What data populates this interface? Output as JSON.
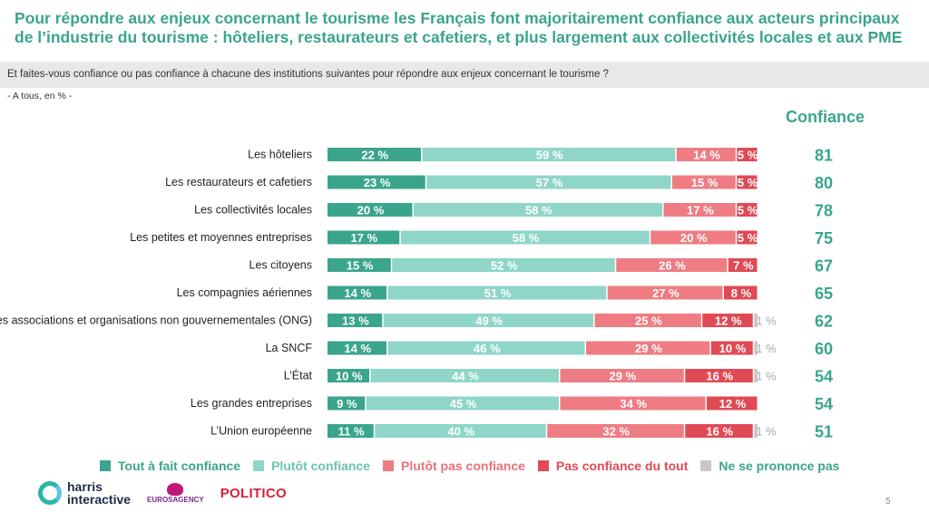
{
  "title": "Pour répondre aux enjeux concernant le tourisme les Français font majoritairement confiance aux acteurs principaux de l’industrie du tourisme : hôteliers, restaurateurs et cafetiers, et plus largement aux collectivités locales et aux PME",
  "question": "Et faites-vous confiance ou pas confiance à chacune des institutions suivantes pour répondre aux enjeux concernant le tourisme ?",
  "base": "- A tous, en % -",
  "confidence_header": "Confiance",
  "page_number": "5",
  "logos": {
    "harris_line1": "harris",
    "harris_line2": "interactive",
    "euros": "EUROSAGENCY",
    "politico": "POLITICO"
  },
  "colors": {
    "tout_a_fait": "#3aa58c",
    "plutot": "#8fd6c8",
    "plutot_pas": "#ee7c82",
    "pas_du_tout": "#e04a55",
    "nspp": "#c8c8c8",
    "confidence": "#3aa58c"
  },
  "chart_data": {
    "type": "bar",
    "orientation": "horizontal",
    "stacked": true,
    "unit": "%",
    "categories": [
      "Les hôteliers",
      "Les restaurateurs et cafetiers",
      "Les collectivités locales",
      "Les petites et moyennes entreprises",
      "Les citoyens",
      "Les compagnies aériennes",
      "Les associations et organisations non gouvernementales (ONG)",
      "La SNCF",
      "L’État",
      "Les grandes entreprises",
      "L’Union européenne"
    ],
    "series": [
      {
        "name": "Tout à fait confiance",
        "values": [
          22,
          23,
          20,
          17,
          15,
          14,
          13,
          14,
          10,
          9,
          11
        ]
      },
      {
        "name": "Plutôt confiance",
        "values": [
          59,
          57,
          58,
          58,
          52,
          51,
          49,
          46,
          44,
          45,
          40
        ]
      },
      {
        "name": "Plutôt pas confiance",
        "values": [
          14,
          15,
          17,
          20,
          26,
          27,
          25,
          29,
          29,
          34,
          32
        ]
      },
      {
        "name": "Pas confiance du tout",
        "values": [
          5,
          5,
          5,
          5,
          7,
          8,
          12,
          10,
          16,
          12,
          16
        ]
      },
      {
        "name": "Ne se prononce pas",
        "values": [
          0,
          0,
          0,
          0,
          0,
          0,
          1,
          1,
          1,
          0,
          1
        ]
      }
    ],
    "confiance": [
      81,
      80,
      78,
      75,
      67,
      65,
      62,
      60,
      54,
      54,
      51
    ],
    "xlim": [
      0,
      100
    ],
    "legend_position": "bottom"
  }
}
